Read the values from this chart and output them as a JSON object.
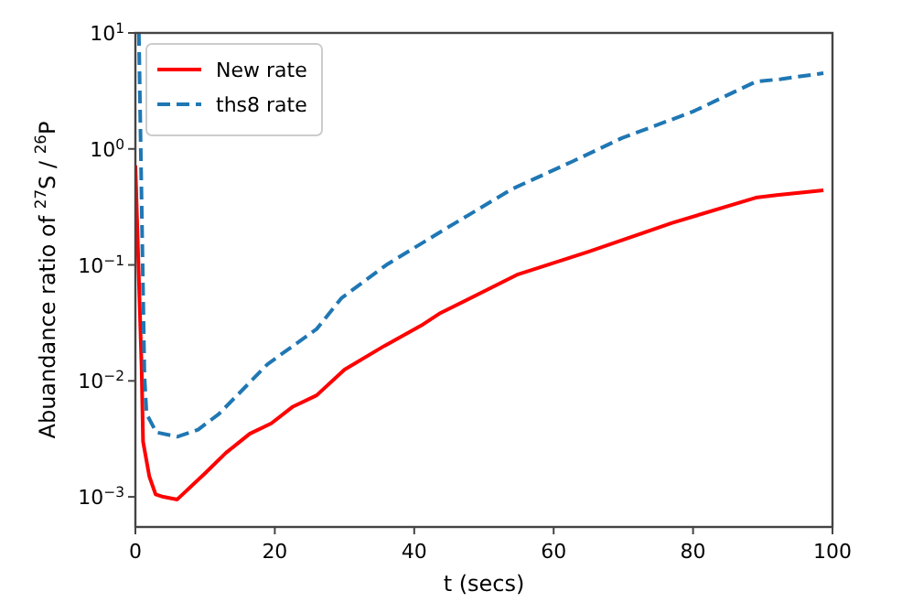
{
  "chart_data": {
    "type": "line",
    "xlabel": "t (secs)",
    "ylabel": "Abuandance ratio of $^{27}$S / $^{26}$P",
    "log": "y",
    "xlim": [
      0,
      100
    ],
    "ylim": [
      0.00055,
      10
    ],
    "xticks": [
      0,
      20,
      40,
      60,
      80,
      100
    ],
    "yticks": [
      {
        "value": 0.001,
        "label": "10$^{−3}$"
      },
      {
        "value": 0.01,
        "label": "10$^{−2}$"
      },
      {
        "value": 0.1,
        "label": "10$^{−1}$"
      },
      {
        "value": 1,
        "label": "10$^{0}$"
      },
      {
        "value": 10,
        "label": "10$^{1}$"
      }
    ],
    "legend": "top left",
    "grid": false,
    "series": [
      {
        "name": "New rate",
        "color": "#ff0000",
        "line_style": "solid",
        "x": [
          0,
          0.9,
          1.1,
          2,
          2.9,
          4,
          6,
          10,
          13,
          16.4,
          19.5,
          22.6,
          26,
          30,
          35.7,
          41,
          43.6,
          54.9,
          65,
          77,
          89,
          92,
          98.7
        ],
        "values": [
          0.72,
          0.0125,
          0.003,
          0.0015,
          0.00105,
          0.001,
          0.00095,
          0.0016,
          0.0024,
          0.0035,
          0.0043,
          0.006,
          0.0075,
          0.0125,
          0.02,
          0.03,
          0.038,
          0.083,
          0.13,
          0.23,
          0.38,
          0.4,
          0.44
        ]
      },
      {
        "name": "ths8 rate",
        "color": "#1f77b4",
        "line_style": "dashed",
        "x": [
          0.5,
          1.3,
          1.6,
          3,
          6,
          9,
          12,
          19,
          26,
          29.6,
          36,
          43.6,
          54,
          62.7,
          69.8,
          80,
          89,
          92.6,
          98.7
        ],
        "values": [
          10,
          0.011,
          0.0052,
          0.0036,
          0.0033,
          0.0038,
          0.0052,
          0.014,
          0.028,
          0.052,
          0.1,
          0.19,
          0.45,
          0.78,
          1.24,
          2.1,
          3.8,
          4.0,
          4.5
        ]
      }
    ]
  }
}
